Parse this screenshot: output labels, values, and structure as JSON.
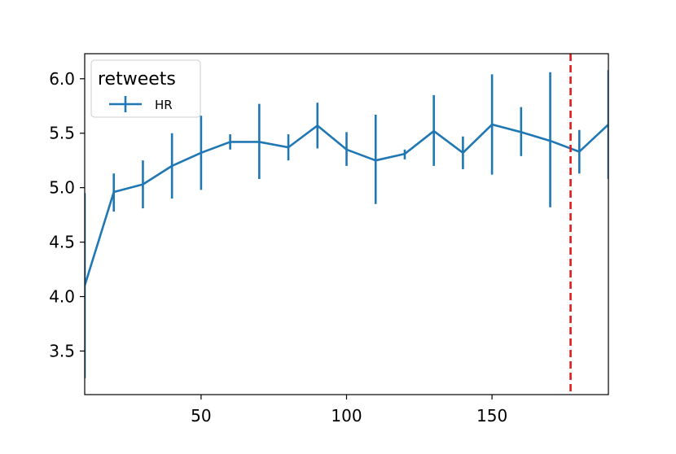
{
  "chart_data": {
    "type": "line",
    "title": "",
    "xlabel": "",
    "ylabel": "",
    "xlim": [
      10,
      190
    ],
    "ylim": [
      3.1,
      6.23
    ],
    "xticks": [
      50,
      100,
      150
    ],
    "yticks": [
      3.5,
      4.0,
      4.5,
      5.0,
      5.5,
      6.0
    ],
    "xtick_labels": [
      "50",
      "100",
      "150"
    ],
    "ytick_labels": [
      "3.5",
      "4.0",
      "4.5",
      "5.0",
      "5.5",
      "6.0"
    ],
    "grid": false,
    "legend": {
      "title": "retweets",
      "placement": "upper-left",
      "entries": [
        "HR"
      ]
    },
    "series": [
      {
        "name": "HR",
        "color": "#1f77b4",
        "x": [
          10,
          20,
          30,
          40,
          50,
          60,
          70,
          80,
          90,
          100,
          110,
          120,
          130,
          140,
          150,
          160,
          170,
          180,
          190
        ],
        "y": [
          4.1,
          4.96,
          5.03,
          5.2,
          5.32,
          5.42,
          5.42,
          5.37,
          5.57,
          5.35,
          5.25,
          5.31,
          5.52,
          5.32,
          5.58,
          5.51,
          5.43,
          5.33,
          5.58
        ],
        "yerr_low": [
          3.25,
          4.78,
          4.81,
          4.9,
          4.98,
          5.35,
          5.08,
          5.25,
          5.36,
          5.2,
          4.85,
          5.26,
          5.2,
          5.17,
          5.12,
          5.29,
          4.82,
          5.13,
          5.08
        ],
        "yerr_high": [
          4.95,
          5.13,
          5.25,
          5.5,
          5.66,
          5.49,
          5.77,
          5.49,
          5.78,
          5.51,
          5.67,
          5.35,
          5.85,
          5.47,
          6.04,
          5.74,
          6.06,
          5.53,
          6.08
        ]
      }
    ],
    "vline": {
      "x": 177,
      "color": "#e31a1c",
      "style": "dashed"
    }
  }
}
